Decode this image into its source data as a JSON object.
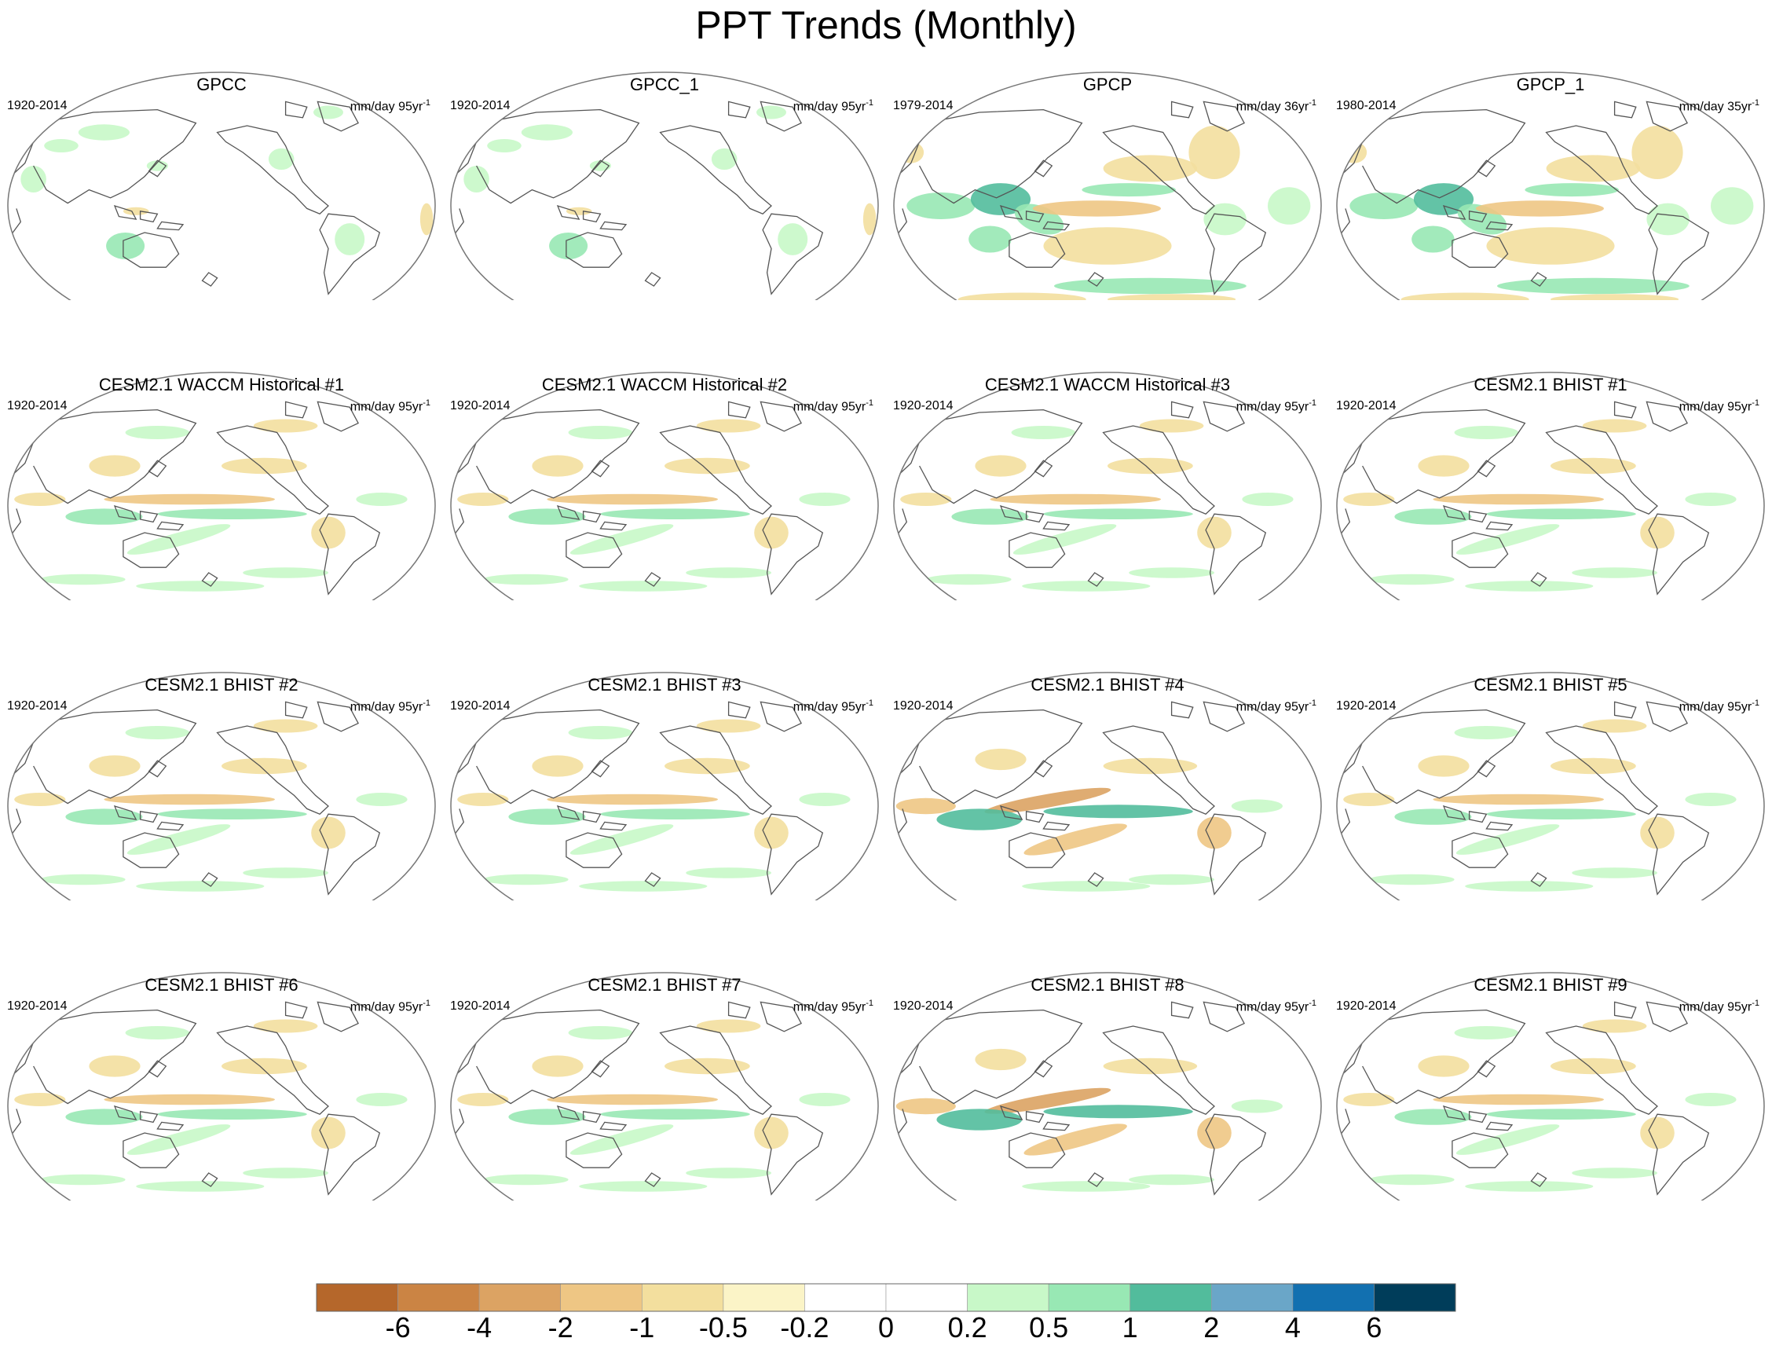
{
  "title": "PPT Trends (Monthly)",
  "panels": [
    {
      "title": "GPCC",
      "period": "1920-2014",
      "units": "mm/day 95yr",
      "exp": "-1",
      "pattern": "land-only"
    },
    {
      "title": "GPCC_1",
      "period": "1920-2014",
      "units": "mm/day 95yr",
      "exp": "-1",
      "pattern": "land-only"
    },
    {
      "title": "GPCP",
      "period": "1979-2014",
      "units": "mm/day 36yr",
      "exp": "-1",
      "pattern": "obs-global"
    },
    {
      "title": "GPCP_1",
      "period": "1980-2014",
      "units": "mm/day 35yr",
      "exp": "-1",
      "pattern": "obs-global"
    },
    {
      "title": "CESM2.1 WACCM Historical #1",
      "period": "1920-2014",
      "units": "mm/day 95yr",
      "exp": "-1",
      "pattern": "model"
    },
    {
      "title": "CESM2.1 WACCM Historical #2",
      "period": "1920-2014",
      "units": "mm/day 95yr",
      "exp": "-1",
      "pattern": "model"
    },
    {
      "title": "CESM2.1 WACCM Historical #3",
      "period": "1920-2014",
      "units": "mm/day 95yr",
      "exp": "-1",
      "pattern": "model"
    },
    {
      "title": "CESM2.1 BHIST #1",
      "period": "1920-2014",
      "units": "mm/day 95yr",
      "exp": "-1",
      "pattern": "model"
    },
    {
      "title": "CESM2.1 BHIST #2",
      "period": "1920-2014",
      "units": "mm/day 95yr",
      "exp": "-1",
      "pattern": "model"
    },
    {
      "title": "CESM2.1 BHIST #3",
      "period": "1920-2014",
      "units": "mm/day 95yr",
      "exp": "-1",
      "pattern": "model"
    },
    {
      "title": "CESM2.1 BHIST #4",
      "period": "1920-2014",
      "units": "mm/day 95yr",
      "exp": "-1",
      "pattern": "model-strong"
    },
    {
      "title": "CESM2.1 BHIST #5",
      "period": "1920-2014",
      "units": "mm/day 95yr",
      "exp": "-1",
      "pattern": "model"
    },
    {
      "title": "CESM2.1 BHIST #6",
      "period": "1920-2014",
      "units": "mm/day 95yr",
      "exp": "-1",
      "pattern": "model"
    },
    {
      "title": "CESM2.1 BHIST #7",
      "period": "1920-2014",
      "units": "mm/day 95yr",
      "exp": "-1",
      "pattern": "model"
    },
    {
      "title": "CESM2.1 BHIST #8",
      "period": "1920-2014",
      "units": "mm/day 95yr",
      "exp": "-1",
      "pattern": "model-strong"
    },
    {
      "title": "CESM2.1 BHIST #9",
      "period": "1920-2014",
      "units": "mm/day 95yr",
      "exp": "-1",
      "pattern": "model"
    }
  ],
  "colorbar": {
    "colors": [
      "#b5672b",
      "#cb8444",
      "#dca363",
      "#eec684",
      "#f3df9e",
      "#fbf4c7",
      "#ffffff",
      "#ffffff",
      "#c8f8c8",
      "#98e8b4",
      "#52bc9c",
      "#6aa6c8",
      "#1270b0",
      "#003d5a"
    ],
    "labels": [
      "-6",
      "-4",
      "-2",
      "-1",
      "-0.5",
      "-0.2",
      "0",
      "0.2",
      "0.5",
      "1",
      "2",
      "4",
      "6"
    ]
  }
}
